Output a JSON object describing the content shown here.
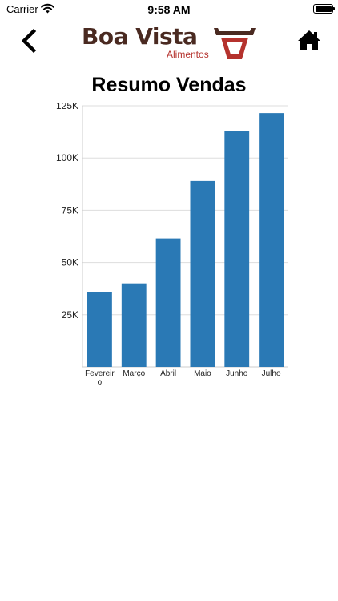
{
  "status_bar": {
    "carrier": "Carrier",
    "time": "9:58 AM"
  },
  "logo": {
    "name": "Boa Vista",
    "subtitle": "Alimentos"
  },
  "page_title": "Resumo Vendas",
  "colors": {
    "bar": "#2a79b5",
    "logo_brown": "#4a2a21",
    "logo_red": "#b5322d"
  },
  "chart_data": {
    "type": "bar",
    "title": "",
    "xlabel": "",
    "ylabel": "",
    "categories": [
      "Fevereiro",
      "Março",
      "Abril",
      "Maio",
      "Junho",
      "Julho"
    ],
    "values": [
      36000,
      40000,
      61500,
      89000,
      113000,
      121500
    ],
    "ylim": [
      0,
      125000
    ],
    "yticks": [
      25000,
      50000,
      75000,
      100000,
      125000
    ],
    "ytick_labels": [
      "25K",
      "50K",
      "75K",
      "100K",
      "125K"
    ],
    "grid": true,
    "legend": "none"
  }
}
